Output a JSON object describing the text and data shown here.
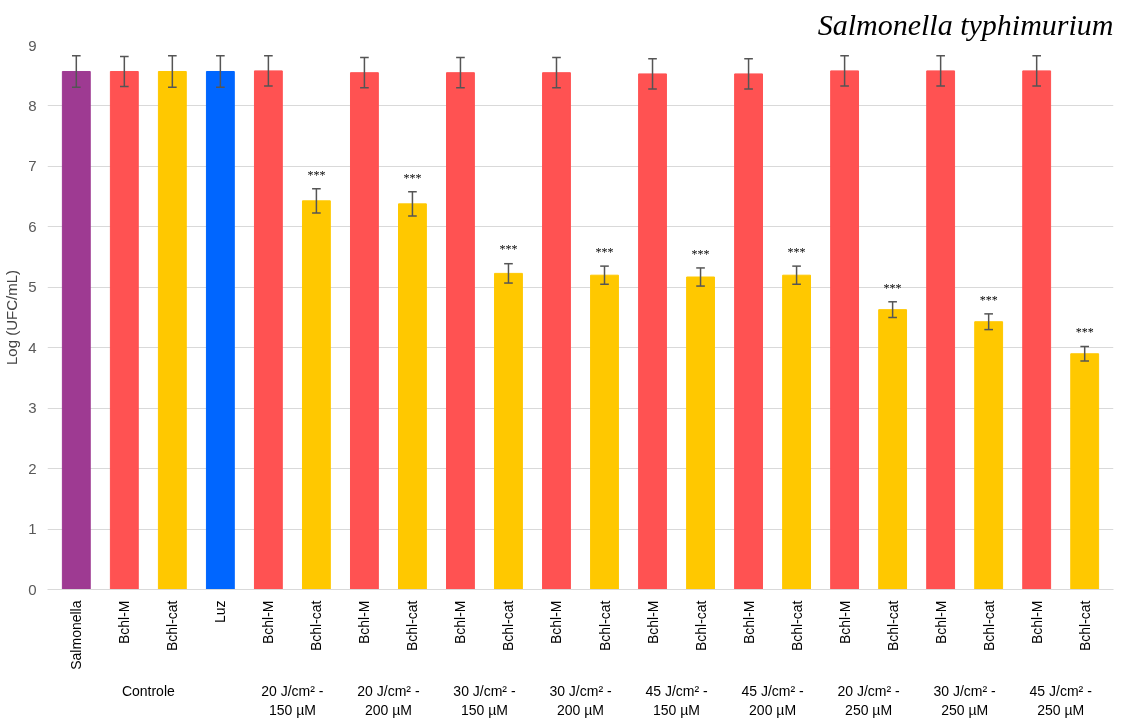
{
  "chart_data": {
    "type": "bar",
    "title": "Salmonella typhimurium",
    "ylabel": "Log (UFC/mL)",
    "categories": [
      "Salmonella",
      "Bchl-M",
      "Bchl-cat",
      "Luz",
      "Bchl-M",
      "Bchl-cat",
      "Bchl-M",
      "Bchl-cat",
      "Bchl-M",
      "Bchl-cat",
      "Bchl-M",
      "Bchl-cat",
      "Bchl-M",
      "Bchl-cat",
      "Bchl-M",
      "Bchl-cat",
      "Bchl-M",
      "Bchl-cat",
      "Bchl-M",
      "Bchl-cat",
      "Bchl-M",
      "Bchl-cat"
    ],
    "values": [
      8.57,
      8.57,
      8.57,
      8.57,
      8.58,
      6.43,
      8.55,
      6.38,
      8.55,
      5.23,
      8.55,
      5.2,
      8.53,
      5.17,
      8.53,
      5.2,
      8.58,
      4.63,
      8.58,
      4.43,
      8.58,
      3.9
    ],
    "colors": [
      "#9e3a92",
      "#ff5252",
      "#ffc800",
      "#0066ff",
      "#ff5252",
      "#ffc800",
      "#ff5252",
      "#ffc800",
      "#ff5252",
      "#ffc800",
      "#ff5252",
      "#ffc800",
      "#ff5252",
      "#ffc800",
      "#ff5252",
      "#ffc800",
      "#ff5252",
      "#ffc800",
      "#ff5252",
      "#ffc800",
      "#ff5252",
      "#ffc800"
    ],
    "errors": [
      0.26,
      0.25,
      0.26,
      0.26,
      0.25,
      0.2,
      0.25,
      0.2,
      0.25,
      0.16,
      0.25,
      0.15,
      0.25,
      0.15,
      0.25,
      0.15,
      0.25,
      0.13,
      0.25,
      0.13,
      0.25,
      0.12
    ],
    "value_labels": [
      null,
      null,
      null,
      null,
      null,
      "***",
      null,
      "***",
      null,
      "***",
      null,
      "***",
      null,
      "***",
      null,
      "***",
      null,
      "***",
      null,
      "***",
      null,
      "***"
    ],
    "annotations": [
      "Controle",
      "20 J/cm² -\n150 µM",
      "20 J/cm² -\n200 µM",
      "30 J/cm² -\n150 µM",
      "30 J/cm² -\n200 µM",
      "45 J/cm² -\n150 µM",
      "45 J/cm² -\n200 µM",
      "20 J/cm² -\n250 µM",
      "30 J/cm² -\n250 µM",
      "45 J/cm² -\n250 µM"
    ],
    "ylim": [
      0,
      9
    ],
    "yticks": [
      0,
      1,
      2,
      3,
      4,
      5,
      6,
      7,
      8,
      9
    ],
    "grid": "y"
  }
}
